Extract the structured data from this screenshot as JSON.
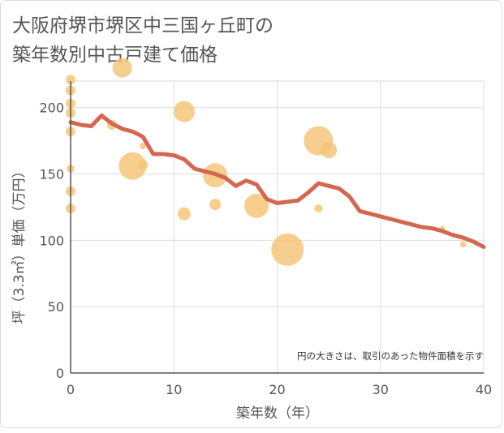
{
  "title_lines": [
    "大阪府堺市堺区中三国ヶ丘町の",
    "築年数別中古戸建て価格"
  ],
  "chart_data": {
    "type": "scatter",
    "xlabel": "築年数（年）",
    "ylabel": "坪（3.3㎡）単価（万円）",
    "xlim": [
      0,
      40
    ],
    "ylim": [
      0,
      220
    ],
    "xticks": [
      0,
      10,
      20,
      30,
      40
    ],
    "yticks": [
      0,
      50,
      100,
      150,
      200
    ],
    "grid": true,
    "annotation": "円の大きさは、取引のあった物件面積を示す",
    "bubble_color": "#f5c57a",
    "line_color": "#d4674f",
    "series": [
      {
        "type": "scatter",
        "points": [
          {
            "x": 0,
            "y": 221,
            "size": 6
          },
          {
            "x": 0,
            "y": 213,
            "size": 6
          },
          {
            "x": 0,
            "y": 203,
            "size": 6
          },
          {
            "x": 0,
            "y": 196,
            "size": 6
          },
          {
            "x": 0,
            "y": 182,
            "size": 6
          },
          {
            "x": 0,
            "y": 154,
            "size": 5
          },
          {
            "x": 0,
            "y": 137,
            "size": 6
          },
          {
            "x": 0,
            "y": 124,
            "size": 6
          },
          {
            "x": 4,
            "y": 187,
            "size": 6
          },
          {
            "x": 5,
            "y": 230,
            "size": 12
          },
          {
            "x": 6,
            "y": 156,
            "size": 17
          },
          {
            "x": 7,
            "y": 157,
            "size": 6
          },
          {
            "x": 7,
            "y": 171,
            "size": 4
          },
          {
            "x": 11,
            "y": 197,
            "size": 13
          },
          {
            "x": 11,
            "y": 120,
            "size": 8
          },
          {
            "x": 14,
            "y": 149,
            "size": 15
          },
          {
            "x": 14,
            "y": 127,
            "size": 7
          },
          {
            "x": 18,
            "y": 126,
            "size": 15
          },
          {
            "x": 21,
            "y": 93,
            "size": 20
          },
          {
            "x": 24,
            "y": 175,
            "size": 18
          },
          {
            "x": 24,
            "y": 124,
            "size": 5
          },
          {
            "x": 25,
            "y": 168,
            "size": 10
          },
          {
            "x": 36,
            "y": 109,
            "size": 3
          },
          {
            "x": 38,
            "y": 97,
            "size": 4
          }
        ]
      },
      {
        "type": "line",
        "x": [
          0,
          1,
          2,
          3,
          4,
          5,
          6,
          7,
          8,
          9,
          10,
          11,
          12,
          13,
          14,
          15,
          16,
          17,
          18,
          19,
          20,
          21,
          22,
          23,
          24,
          25,
          26,
          27,
          28,
          29,
          30,
          31,
          32,
          33,
          34,
          35,
          36,
          37,
          38,
          39,
          40
        ],
        "y": [
          189,
          187,
          186,
          194,
          188,
          184,
          182,
          178,
          165,
          165,
          164,
          161,
          154,
          152,
          150,
          147,
          141,
          145,
          142,
          131,
          128,
          129,
          130,
          136,
          143,
          141,
          139,
          133,
          122,
          120,
          118,
          116,
          114,
          112,
          110,
          109,
          107,
          104,
          102,
          99,
          95
        ]
      }
    ]
  }
}
